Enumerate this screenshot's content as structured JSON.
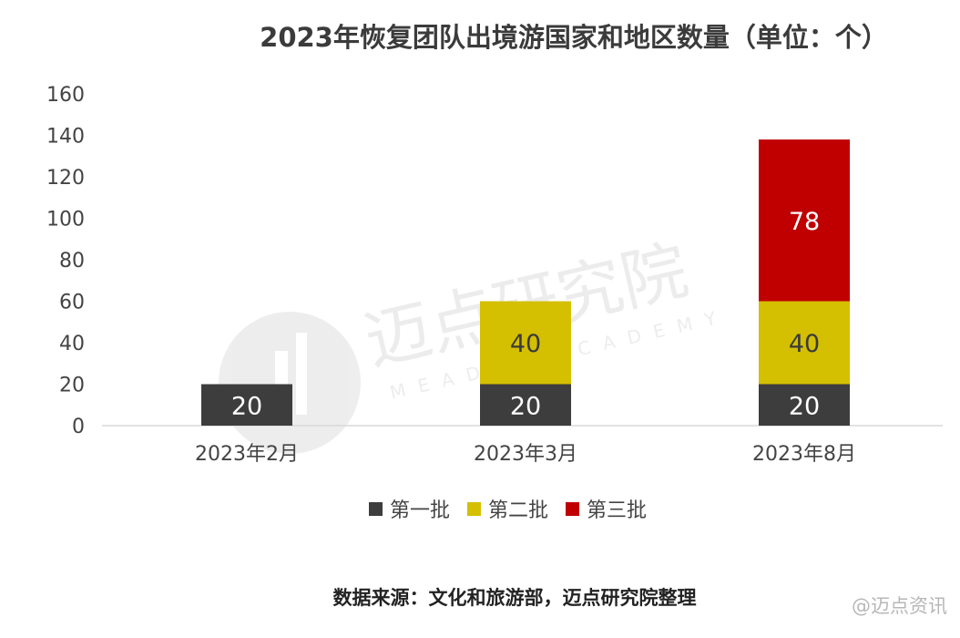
{
  "chart_data": {
    "type": "bar",
    "stacked": true,
    "title": "2023年恢复团队出境游国家和地区数量（单位：个）",
    "categories": [
      "2023年2月",
      "2023年3月",
      "2023年8月"
    ],
    "series": [
      {
        "name": "第一批",
        "color": "#3d3d3d",
        "label_color": "#ffffff",
        "values": [
          20,
          20,
          20
        ]
      },
      {
        "name": "第二批",
        "color": "#d4bf00",
        "label_color": "#3a3a3a",
        "values": [
          null,
          40,
          40
        ]
      },
      {
        "name": "第三批",
        "color": "#c00000",
        "label_color": "#ffffff",
        "values": [
          null,
          null,
          78
        ]
      }
    ],
    "ylim": [
      0,
      160
    ],
    "yticks": [
      0,
      20,
      40,
      60,
      80,
      100,
      120,
      140,
      160
    ],
    "grid": false,
    "legend_position": "bottom"
  },
  "source_note": "数据来源：文化和旅游部，迈点研究院整理",
  "watermark": {
    "logo_text": "迈点研究院",
    "academy_text": "MEADIN ACADEMY",
    "corner_text": "@迈点资讯"
  }
}
